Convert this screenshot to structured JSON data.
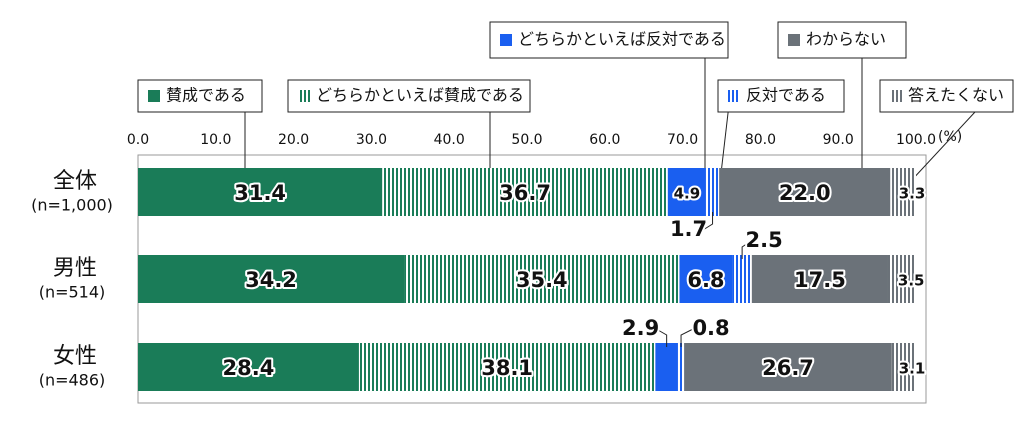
{
  "chart_data": {
    "type": "stacked-bar-horizontal",
    "categories": [
      "全体",
      "男性",
      "女性"
    ],
    "category_notes": [
      "(n=1,000)",
      "(n=514)",
      "(n=486)"
    ],
    "x_unit": "(%)",
    "xlim": [
      0,
      100
    ],
    "xticks": [
      {
        "value": 0,
        "label": "0.0"
      },
      {
        "value": 10,
        "label": "10.0"
      },
      {
        "value": 20,
        "label": "20.0"
      },
      {
        "value": 30,
        "label": "30.0"
      },
      {
        "value": 40,
        "label": "40.0"
      },
      {
        "value": 50,
        "label": "50.0"
      },
      {
        "value": 60,
        "label": "60.0"
      },
      {
        "value": 70,
        "label": "70.0"
      },
      {
        "value": 80,
        "label": "80.0"
      },
      {
        "value": 90,
        "label": "90.0"
      },
      {
        "value": 100,
        "label": "100.0"
      }
    ],
    "series": [
      {
        "name": "賛成である",
        "color": "#1a7c58",
        "pattern": "solid",
        "values": [
          31.4,
          34.2,
          28.4
        ],
        "value_labels": [
          "31.4",
          "34.2",
          "28.4"
        ]
      },
      {
        "name": "どちらかといえば賛成である",
        "color": "#1a7c58",
        "pattern": "stripes",
        "values": [
          36.7,
          35.4,
          38.1
        ],
        "value_labels": [
          "36.7",
          "35.4",
          "38.1"
        ]
      },
      {
        "name": "どちらかといえば反対である",
        "color": "#1a5ff0",
        "pattern": "solid",
        "values": [
          4.9,
          6.8,
          2.9
        ],
        "value_labels": [
          "4.9",
          "6.8",
          "2.9"
        ]
      },
      {
        "name": "反対である",
        "color": "#1a5ff0",
        "pattern": "stripes",
        "values": [
          1.7,
          2.5,
          0.8
        ],
        "value_labels": [
          "1.7",
          "2.5",
          "0.8"
        ]
      },
      {
        "name": "わからない",
        "color": "#6b7279",
        "pattern": "solid",
        "values": [
          22.0,
          17.5,
          26.7
        ],
        "value_labels": [
          "22.0",
          "17.5",
          "26.7"
        ]
      },
      {
        "name": "答えたくない",
        "color": "#6b7279",
        "pattern": "stripes",
        "values": [
          3.3,
          3.5,
          3.1
        ],
        "value_labels": [
          "3.3",
          "3.5",
          "3.1"
        ]
      }
    ]
  }
}
